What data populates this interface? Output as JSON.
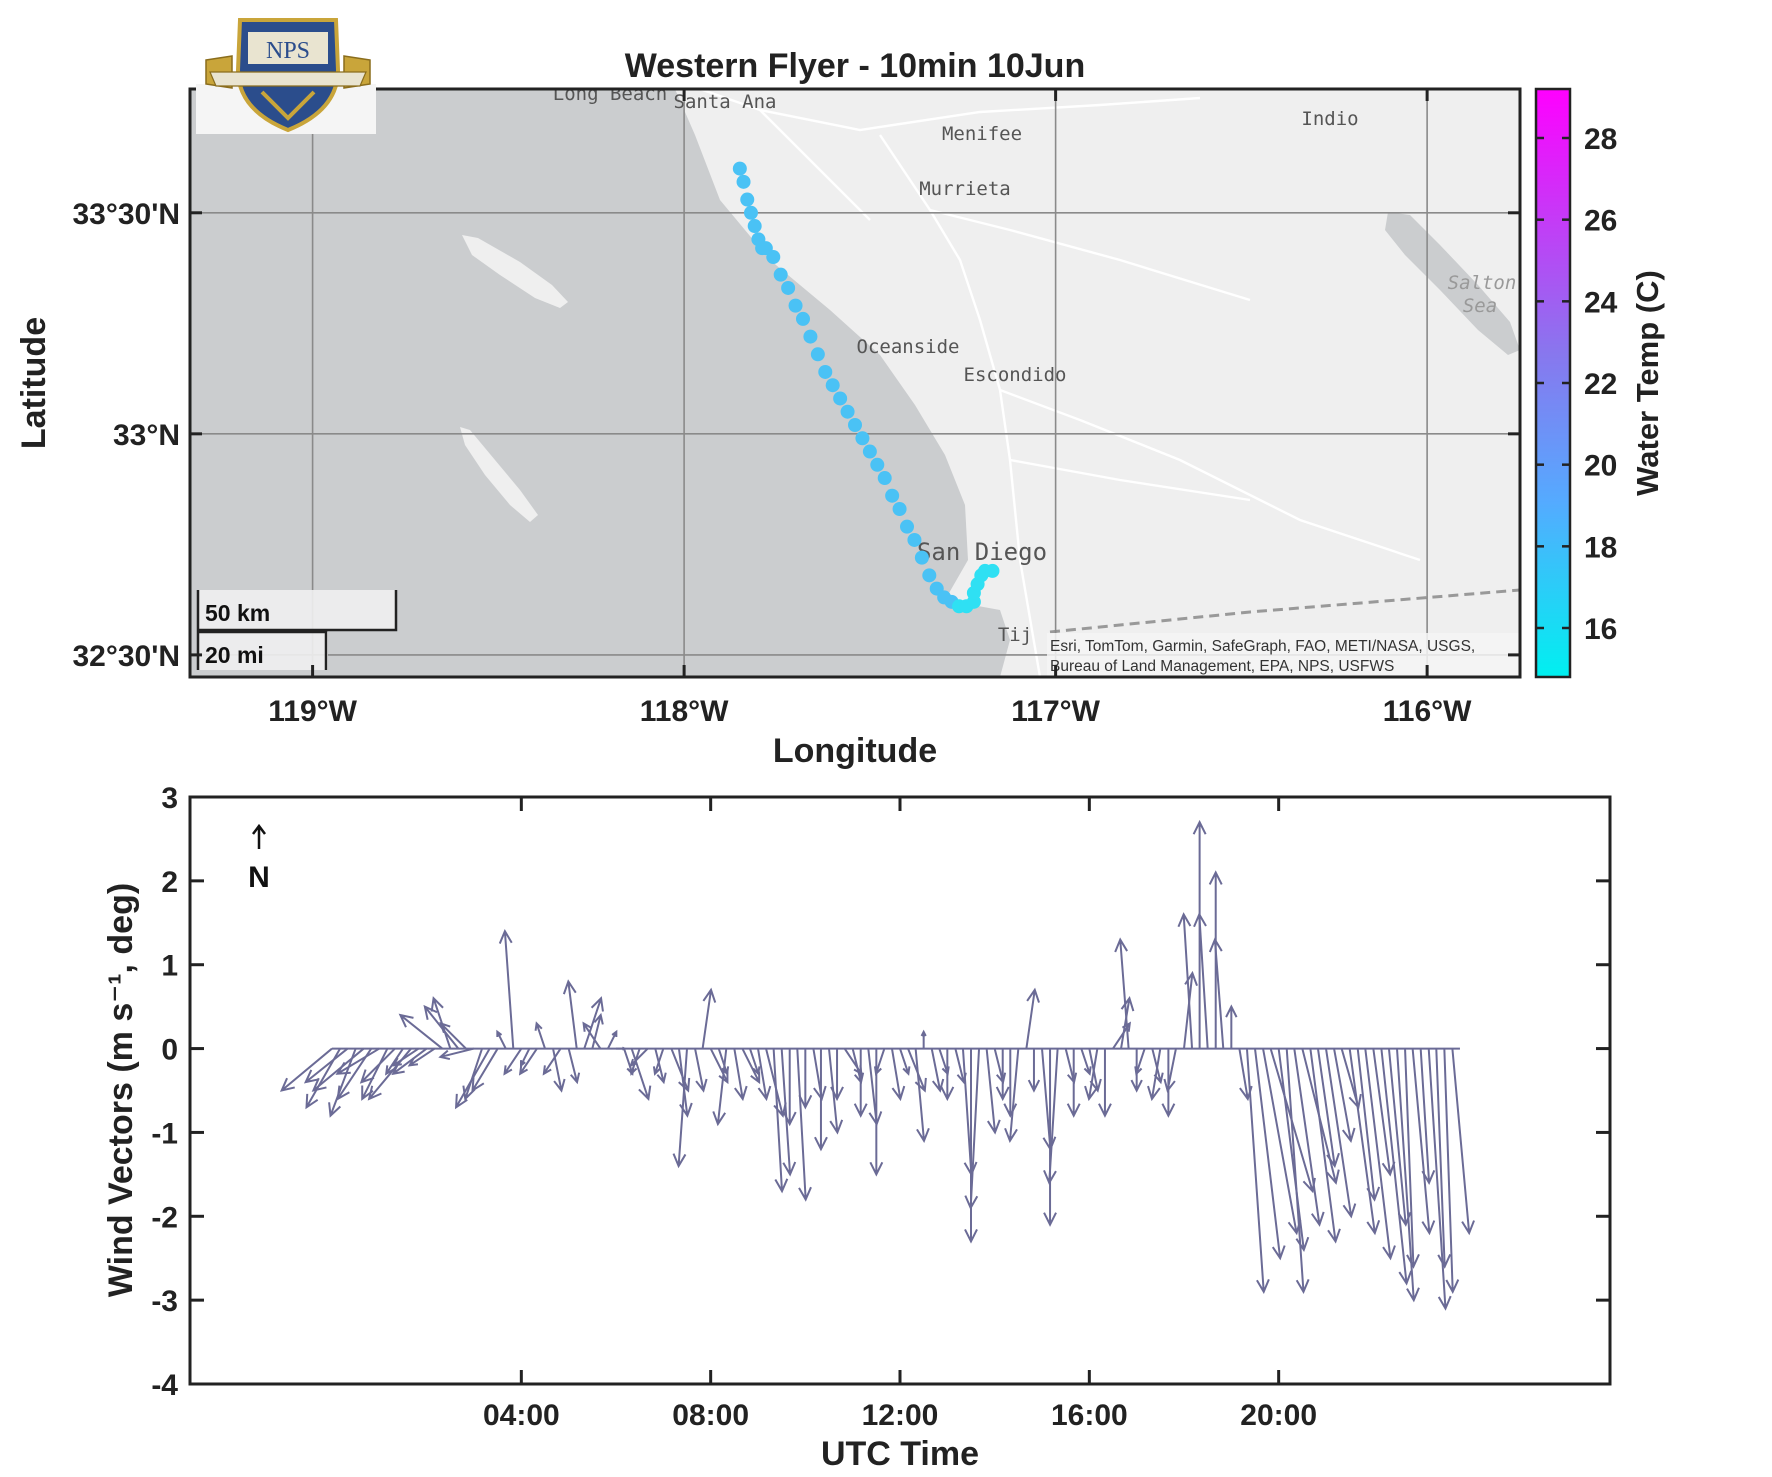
{
  "chart_data": [
    {
      "type": "scatter",
      "title": "Western Flyer - 10min 10Jun",
      "xlabel": "Longitude",
      "ylabel": "Latitude",
      "xlim": [
        -119.33,
        -115.75
      ],
      "ylim": [
        32.45,
        33.78
      ],
      "xticks": [
        -119,
        -118,
        -117,
        -116
      ],
      "xtick_labels": [
        "119°W",
        "118°W",
        "117°W",
        "116°W"
      ],
      "yticks": [
        32.5,
        33.0,
        33.5
      ],
      "ytick_labels": [
        "32°30'N",
        "33°N",
        "33°30'N"
      ],
      "grid": true,
      "basemap_labels": [
        "Long Beach",
        "Santa Ana",
        "Menifee",
        "Murrieta",
        "Indio",
        "Oceanside",
        "Escondido",
        "San Diego",
        "Tij",
        "Salton",
        "Sea"
      ],
      "attribution_lines": [
        "Esri, TomTom, Garmin, SafeGraph, FAO, METI/NASA, USGS,",
        "Bureau of Land Management, EPA, NPS, USFWS"
      ],
      "scalebar_labels": [
        "50 km",
        "20 mi"
      ],
      "colorbar": {
        "label": "Water Temp (C)",
        "range": [
          14.8,
          29.2
        ],
        "ticks": [
          16,
          18,
          20,
          22,
          24,
          26,
          28
        ],
        "colors": [
          "#00f0f0",
          "#55aaff",
          "#8877ee",
          "#ff00ff"
        ]
      },
      "track": {
        "color": "#4ac2f5",
        "end_color": "#2fe0f3",
        "lon": [
          -117.85,
          -117.84,
          -117.83,
          -117.82,
          -117.81,
          -117.8,
          -117.79,
          -117.78,
          -117.76,
          -117.74,
          -117.72,
          -117.7,
          -117.68,
          -117.66,
          -117.64,
          -117.62,
          -117.6,
          -117.58,
          -117.56,
          -117.54,
          -117.52,
          -117.5,
          -117.48,
          -117.46,
          -117.44,
          -117.42,
          -117.4,
          -117.38,
          -117.36,
          -117.34,
          -117.32,
          -117.3,
          -117.28,
          -117.26,
          -117.24,
          -117.22,
          -117.22,
          -117.21,
          -117.2,
          -117.19,
          -117.17
        ],
        "lat": [
          33.6,
          33.57,
          33.53,
          33.5,
          33.47,
          33.44,
          33.42,
          33.42,
          33.4,
          33.36,
          33.33,
          33.29,
          33.26,
          33.22,
          33.18,
          33.14,
          33.11,
          33.08,
          33.05,
          33.02,
          32.99,
          32.96,
          32.93,
          32.9,
          32.86,
          32.83,
          32.79,
          32.76,
          32.72,
          32.68,
          32.65,
          32.63,
          32.62,
          32.61,
          32.61,
          32.62,
          32.64,
          32.66,
          32.68,
          32.69,
          32.69
        ]
      }
    },
    {
      "type": "quiver",
      "xlabel": "UTC Time",
      "ylabel": "Wind  Vectors  (m  s⁻¹,  deg)",
      "xlim": [
        -3.0,
        27.0
      ],
      "ylim": [
        -4,
        3
      ],
      "xticks": [
        4,
        8,
        12,
        16,
        20
      ],
      "xtick_labels": [
        "04:00",
        "08:00",
        "12:00",
        "16:00",
        "20:00"
      ],
      "yticks": [
        -4,
        -3,
        -2,
        -1,
        0,
        1,
        2,
        3
      ],
      "ytick_labels": [
        "-4",
        "-3",
        "-2",
        "-1",
        "0",
        "1",
        "2",
        "3"
      ],
      "color": "#6b6b96",
      "north_indicator": "N",
      "time_hours": [
        0.0,
        0.17,
        0.33,
        0.5,
        0.67,
        0.83,
        1.0,
        1.17,
        1.33,
        1.5,
        1.67,
        1.83,
        2.0,
        2.17,
        2.33,
        2.5,
        2.67,
        2.83,
        3.0,
        3.17,
        3.33,
        3.5,
        3.67,
        3.83,
        4.0,
        4.17,
        4.33,
        4.5,
        4.67,
        4.83,
        5.0,
        5.17,
        5.33,
        5.5,
        5.67,
        5.83,
        6.0,
        6.17,
        6.33,
        6.5,
        6.67,
        6.83,
        7.0,
        7.17,
        7.33,
        7.5,
        7.67,
        7.83,
        8.0,
        8.17,
        8.33,
        8.5,
        8.67,
        8.83,
        9.0,
        9.17,
        9.33,
        9.5,
        9.67,
        9.83,
        10.0,
        10.17,
        10.33,
        10.5,
        10.67,
        10.83,
        11.0,
        11.17,
        11.33,
        11.5,
        11.67,
        11.83,
        12.0,
        12.17,
        12.33,
        12.5,
        12.67,
        12.83,
        13.0,
        13.17,
        13.33,
        13.5,
        13.67,
        13.83,
        14.0,
        14.17,
        14.33,
        14.5,
        14.67,
        14.83,
        15.0,
        15.17,
        15.33,
        15.5,
        15.67,
        15.83,
        16.0,
        16.17,
        16.33,
        16.5,
        16.67,
        16.83,
        17.0,
        17.17,
        17.33,
        17.5,
        17.67,
        17.83,
        18.0,
        18.17,
        18.33,
        18.5,
        18.67,
        18.83,
        19.0,
        19.17,
        19.33,
        19.5,
        19.67,
        19.83,
        20.0,
        20.17,
        20.33,
        20.5,
        20.67,
        20.83,
        21.0,
        21.17,
        21.33,
        21.5,
        21.67,
        21.83,
        22.0,
        22.17,
        22.33,
        22.5,
        22.67,
        22.83,
        23.0,
        23.17,
        23.33,
        23.5,
        23.67,
        23.83
      ],
      "u": [
        -0.6,
        -0.4,
        -0.5,
        -0.3,
        -0.6,
        -0.4,
        -0.5,
        -0.3,
        -0.4,
        -0.2,
        -0.5,
        -0.3,
        -0.4,
        -0.3,
        -0.5,
        -0.2,
        -0.4,
        -0.3,
        -0.4,
        -0.2,
        -0.4,
        -0.3,
        -0.1,
        -0.1,
        -0.2,
        -0.1,
        -0.2,
        -0.1,
        0.1,
        -0.2,
        0.1,
        -0.1,
        0.2,
        0.1,
        -0.2,
        0.1,
        0.1,
        0.1,
        0.2,
        -0.1,
        -0.2,
        0.1,
        -0.1,
        0.2,
        0.1,
        -0.1,
        0.1,
        0.1,
        0.2,
        0.1,
        -0.1,
        0.1,
        0.2,
        0.1,
        0.1,
        0.2,
        0.1,
        0.1,
        0.0,
        0.1,
        0.0,
        0.1,
        0.0,
        0.1,
        0.0,
        0.2,
        0.1,
        0.0,
        0.1,
        0.0,
        -0.1,
        0.1,
        0.1,
        0.2,
        0.1,
        0.0,
        0.1,
        0.1,
        0.0,
        0.1,
        0.1,
        0.0,
        -0.1,
        0.1,
        0.1,
        0.0,
        0.0,
        -0.1,
        0.1,
        0.0,
        0.1,
        0.0,
        -0.1,
        0.1,
        0.0,
        0.1,
        0.1,
        -0.1,
        0.0,
        0.2,
        0.1,
        -0.1,
        0.0,
        -0.1,
        0.1,
        -0.1,
        0.0,
        -0.1,
        0.1,
        -0.1,
        0.0,
        -0.1,
        0.0,
        -0.1,
        0.0,
        0.1,
        0.2,
        0.3,
        0.4,
        0.5,
        0.3,
        0.2,
        0.3,
        0.4,
        0.3,
        0.2,
        0.3,
        0.2,
        0.2,
        0.3,
        0.2,
        0.3,
        0.2,
        0.3,
        0.2,
        0.2,
        0.1,
        0.2,
        0.1,
        0.2,
        0.1,
        0.1,
        0.2
      ],
      "v": [
        -0.5,
        -0.7,
        -0.4,
        -0.8,
        -0.5,
        -0.6,
        -0.3,
        -0.6,
        -0.4,
        -0.3,
        -0.6,
        -0.2,
        -0.3,
        -0.2,
        0.4,
        0.6,
        0.5,
        0.3,
        -0.1,
        -0.6,
        -0.7,
        -0.5,
        0.2,
        1.4,
        -0.3,
        -0.2,
        -0.3,
        0.3,
        -0.5,
        -0.3,
        -0.4,
        0.8,
        0.6,
        0.4,
        0.3,
        0.2,
        0.0,
        -0.3,
        -0.6,
        -0.3,
        -0.2,
        -0.4,
        -0.3,
        -0.5,
        -0.8,
        -1.4,
        -0.5,
        0.7,
        -0.4,
        -0.3,
        -0.9,
        -0.6,
        -0.4,
        -0.3,
        -0.6,
        -0.8,
        -1.7,
        -1.5,
        -0.9,
        -1.8,
        -0.7,
        -0.6,
        -1.2,
        -1.0,
        -0.6,
        -0.3,
        -0.4,
        -0.8,
        -0.9,
        -1.5,
        -0.3,
        -0.6,
        -0.3,
        -0.5,
        -1.1,
        0.2,
        -0.5,
        -0.3,
        -0.6,
        -0.4,
        -1.5,
        -2.3,
        -1.9,
        -1.0,
        -0.4,
        -0.6,
        -0.8,
        -1.1,
        0.7,
        -0.5,
        -1.2,
        -2.1,
        -1.6,
        -0.4,
        -0.8,
        -0.3,
        -0.5,
        -0.6,
        -0.8,
        0.3,
        0.6,
        1.3,
        -0.5,
        -0.3,
        -0.4,
        -0.6,
        -0.8,
        -0.5,
        0.9,
        1.6,
        2.7,
        1.6,
        2.1,
        1.3,
        0.5,
        -0.6,
        -2.9,
        -2.5,
        -2.2,
        -1.7,
        -2.4,
        -2.9,
        -2.1,
        -1.6,
        -2.3,
        -1.4,
        -2.0,
        -1.1,
        -0.7,
        -2.2,
        -1.8,
        -2.5,
        -1.5,
        -2.8,
        -2.1,
        -3.0,
        -2.6,
        -2.2,
        -1.6,
        -3.1,
        -2.6,
        -2.9,
        -2.2
      ]
    }
  ]
}
